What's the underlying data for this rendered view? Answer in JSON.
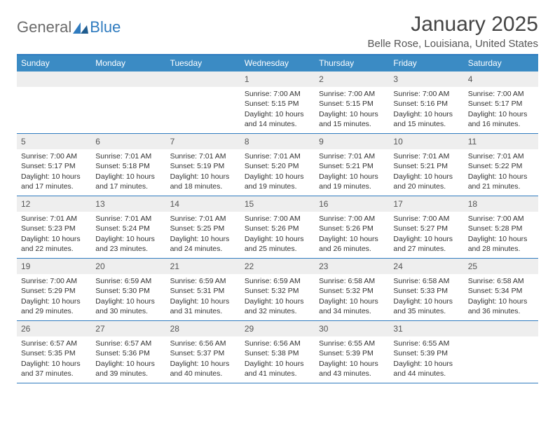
{
  "logo": {
    "general": "General",
    "blue": "Blue"
  },
  "title": "January 2025",
  "location": "Belle Rose, Louisiana, United States",
  "colors": {
    "header_bg": "#3b8bc4",
    "border": "#2f7bbf",
    "daynum_bg": "#eeeeee",
    "text": "#333333",
    "logo_gray": "#6b6b6b",
    "logo_blue": "#2f7bbf"
  },
  "weekdays": [
    "Sunday",
    "Monday",
    "Tuesday",
    "Wednesday",
    "Thursday",
    "Friday",
    "Saturday"
  ],
  "weeks": [
    [
      null,
      null,
      null,
      {
        "n": "1",
        "sr": "7:00 AM",
        "ss": "5:15 PM",
        "dl": "10 hours and 14 minutes."
      },
      {
        "n": "2",
        "sr": "7:00 AM",
        "ss": "5:15 PM",
        "dl": "10 hours and 15 minutes."
      },
      {
        "n": "3",
        "sr": "7:00 AM",
        "ss": "5:16 PM",
        "dl": "10 hours and 15 minutes."
      },
      {
        "n": "4",
        "sr": "7:00 AM",
        "ss": "5:17 PM",
        "dl": "10 hours and 16 minutes."
      }
    ],
    [
      {
        "n": "5",
        "sr": "7:00 AM",
        "ss": "5:17 PM",
        "dl": "10 hours and 17 minutes."
      },
      {
        "n": "6",
        "sr": "7:01 AM",
        "ss": "5:18 PM",
        "dl": "10 hours and 17 minutes."
      },
      {
        "n": "7",
        "sr": "7:01 AM",
        "ss": "5:19 PM",
        "dl": "10 hours and 18 minutes."
      },
      {
        "n": "8",
        "sr": "7:01 AM",
        "ss": "5:20 PM",
        "dl": "10 hours and 19 minutes."
      },
      {
        "n": "9",
        "sr": "7:01 AM",
        "ss": "5:21 PM",
        "dl": "10 hours and 19 minutes."
      },
      {
        "n": "10",
        "sr": "7:01 AM",
        "ss": "5:21 PM",
        "dl": "10 hours and 20 minutes."
      },
      {
        "n": "11",
        "sr": "7:01 AM",
        "ss": "5:22 PM",
        "dl": "10 hours and 21 minutes."
      }
    ],
    [
      {
        "n": "12",
        "sr": "7:01 AM",
        "ss": "5:23 PM",
        "dl": "10 hours and 22 minutes."
      },
      {
        "n": "13",
        "sr": "7:01 AM",
        "ss": "5:24 PM",
        "dl": "10 hours and 23 minutes."
      },
      {
        "n": "14",
        "sr": "7:01 AM",
        "ss": "5:25 PM",
        "dl": "10 hours and 24 minutes."
      },
      {
        "n": "15",
        "sr": "7:00 AM",
        "ss": "5:26 PM",
        "dl": "10 hours and 25 minutes."
      },
      {
        "n": "16",
        "sr": "7:00 AM",
        "ss": "5:26 PM",
        "dl": "10 hours and 26 minutes."
      },
      {
        "n": "17",
        "sr": "7:00 AM",
        "ss": "5:27 PM",
        "dl": "10 hours and 27 minutes."
      },
      {
        "n": "18",
        "sr": "7:00 AM",
        "ss": "5:28 PM",
        "dl": "10 hours and 28 minutes."
      }
    ],
    [
      {
        "n": "19",
        "sr": "7:00 AM",
        "ss": "5:29 PM",
        "dl": "10 hours and 29 minutes."
      },
      {
        "n": "20",
        "sr": "6:59 AM",
        "ss": "5:30 PM",
        "dl": "10 hours and 30 minutes."
      },
      {
        "n": "21",
        "sr": "6:59 AM",
        "ss": "5:31 PM",
        "dl": "10 hours and 31 minutes."
      },
      {
        "n": "22",
        "sr": "6:59 AM",
        "ss": "5:32 PM",
        "dl": "10 hours and 32 minutes."
      },
      {
        "n": "23",
        "sr": "6:58 AM",
        "ss": "5:32 PM",
        "dl": "10 hours and 34 minutes."
      },
      {
        "n": "24",
        "sr": "6:58 AM",
        "ss": "5:33 PM",
        "dl": "10 hours and 35 minutes."
      },
      {
        "n": "25",
        "sr": "6:58 AM",
        "ss": "5:34 PM",
        "dl": "10 hours and 36 minutes."
      }
    ],
    [
      {
        "n": "26",
        "sr": "6:57 AM",
        "ss": "5:35 PM",
        "dl": "10 hours and 37 minutes."
      },
      {
        "n": "27",
        "sr": "6:57 AM",
        "ss": "5:36 PM",
        "dl": "10 hours and 39 minutes."
      },
      {
        "n": "28",
        "sr": "6:56 AM",
        "ss": "5:37 PM",
        "dl": "10 hours and 40 minutes."
      },
      {
        "n": "29",
        "sr": "6:56 AM",
        "ss": "5:38 PM",
        "dl": "10 hours and 41 minutes."
      },
      {
        "n": "30",
        "sr": "6:55 AM",
        "ss": "5:39 PM",
        "dl": "10 hours and 43 minutes."
      },
      {
        "n": "31",
        "sr": "6:55 AM",
        "ss": "5:39 PM",
        "dl": "10 hours and 44 minutes."
      },
      null
    ]
  ],
  "labels": {
    "sunrise": "Sunrise:",
    "sunset": "Sunset:",
    "daylight": "Daylight:"
  }
}
